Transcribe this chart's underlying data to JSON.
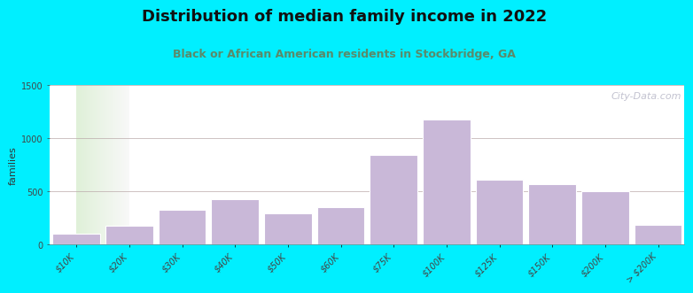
{
  "title": "Distribution of median family income in 2022",
  "subtitle": "Black or African American residents in Stockbridge, GA",
  "ylabel": "families",
  "categories": [
    "$10K",
    "$20K",
    "$30K",
    "$40K",
    "$50K",
    "$60K",
    "$75K",
    "$100K",
    "$125K",
    "$150K",
    "$200K",
    "> $200K"
  ],
  "values": [
    100,
    175,
    330,
    430,
    295,
    350,
    840,
    1180,
    610,
    570,
    500,
    185
  ],
  "bar_color": "#c9b8d8",
  "bar_edge_color": "#ffffff",
  "ylim": [
    0,
    1500
  ],
  "yticks": [
    0,
    500,
    1000,
    1500
  ],
  "bg_outer": "#00efff",
  "bg_inner_left": "#dff0d8",
  "bg_inner_right": "#f8f8f8",
  "title_fontsize": 13,
  "subtitle_fontsize": 9,
  "subtitle_color": "#5a8a6a",
  "ylabel_fontsize": 8,
  "tick_fontsize": 7,
  "watermark_text": "City-Data.com",
  "watermark_color": "#b8b8c8"
}
